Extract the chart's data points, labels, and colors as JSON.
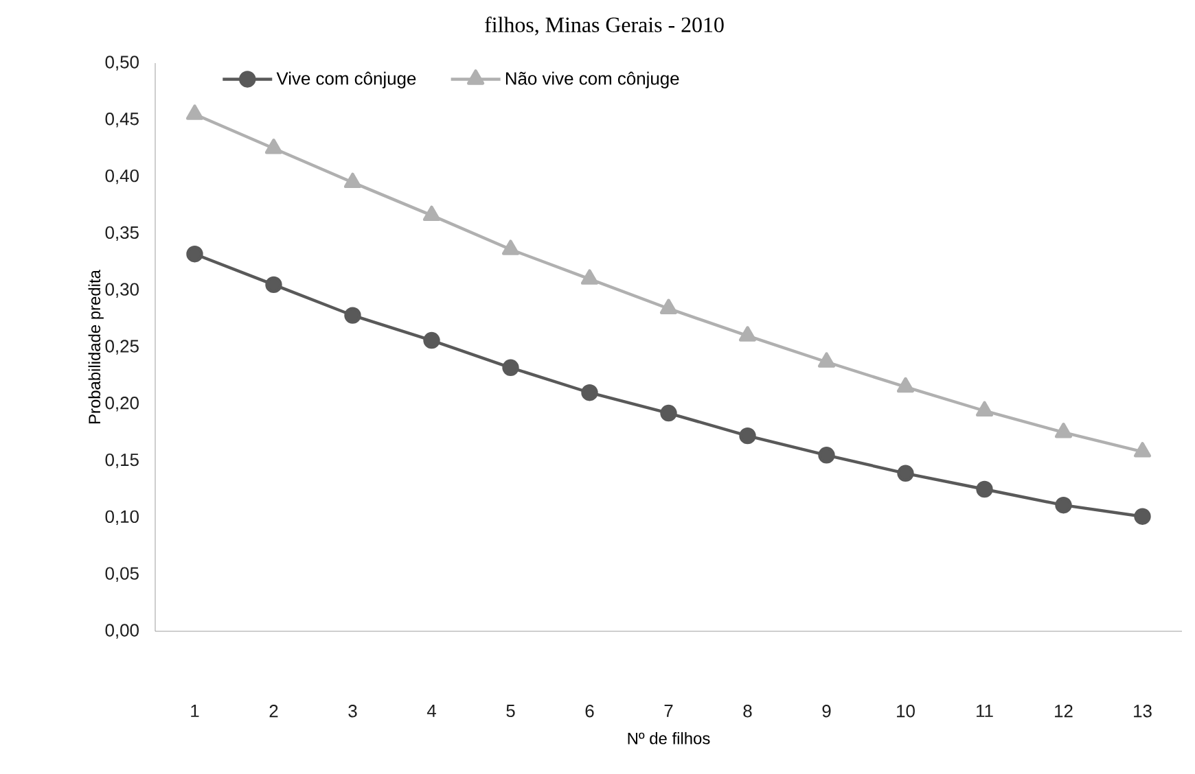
{
  "chart_data": {
    "type": "line",
    "title": "filhos, Minas Gerais - 2010",
    "xlabel": "Nº de filhos",
    "ylabel": "Probabilidade predita",
    "categories": [
      "1",
      "2",
      "3",
      "4",
      "5",
      "6",
      "7",
      "8",
      "9",
      "10",
      "11",
      "12",
      "13"
    ],
    "series": [
      {
        "name": "Vive com cônjuge",
        "color": "#595959",
        "marker": "circle",
        "values": [
          0.332,
          0.305,
          0.278,
          0.256,
          0.232,
          0.21,
          0.192,
          0.172,
          0.155,
          0.139,
          0.125,
          0.111,
          0.101
        ]
      },
      {
        "name": "Não vive com cônjuge",
        "color": "#b0b0b0",
        "marker": "triangle",
        "values": [
          0.455,
          0.425,
          0.395,
          0.366,
          0.336,
          0.31,
          0.284,
          0.26,
          0.237,
          0.215,
          0.194,
          0.175,
          0.158
        ]
      }
    ],
    "ylim": [
      0,
      0.5
    ],
    "yticks": [
      {
        "value": 0,
        "label": "0,00"
      },
      {
        "value": 0.05,
        "label": "0,05"
      },
      {
        "value": 0.1,
        "label": "0,10"
      },
      {
        "value": 0.15,
        "label": "0,15"
      },
      {
        "value": 0.2,
        "label": "0,20"
      },
      {
        "value": 0.25,
        "label": "0,25"
      },
      {
        "value": 0.3,
        "label": "0,30"
      },
      {
        "value": 0.35,
        "label": "0,35"
      },
      {
        "value": 0.4,
        "label": "0,40"
      },
      {
        "value": 0.45,
        "label": "0,45"
      },
      {
        "value": 0.5,
        "label": "0,50"
      }
    ],
    "grid": false,
    "legend": "top left"
  }
}
